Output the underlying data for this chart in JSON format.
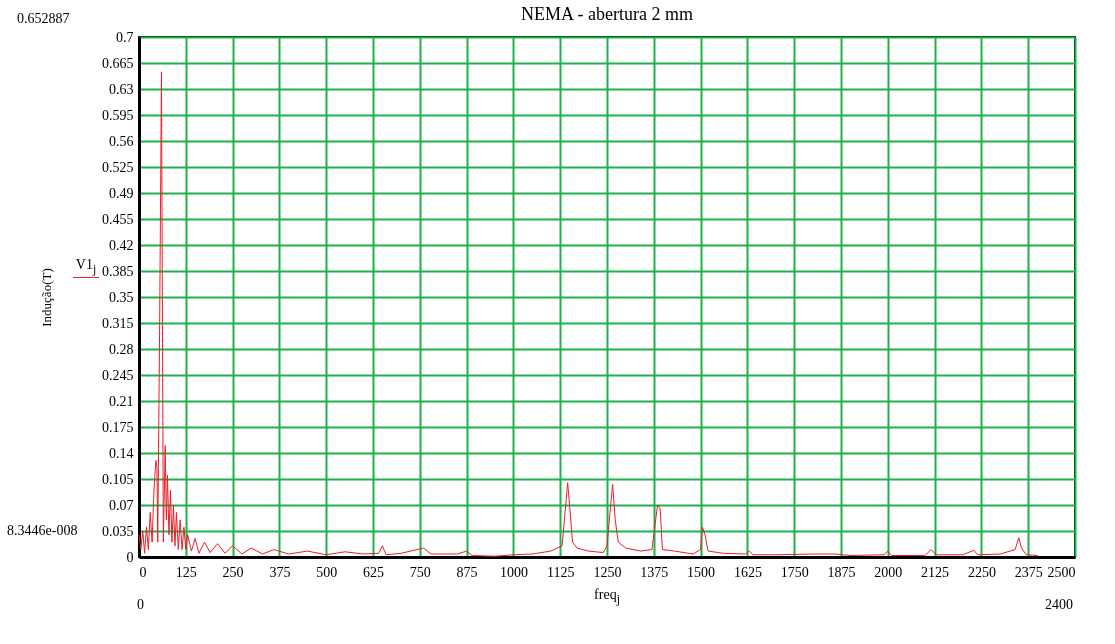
{
  "chart_data": {
    "type": "line",
    "title": "NEMA - abertura 2 mm",
    "xlabel": "freq$_{j}$",
    "ylabel": "Indução(T)",
    "x": [
      0,
      5,
      10,
      15,
      20,
      25,
      30,
      35,
      40,
      45,
      48,
      50,
      55,
      60,
      62,
      65,
      70,
      73,
      76,
      80,
      84,
      88,
      92,
      96,
      100,
      105,
      110,
      115,
      120,
      125,
      130,
      140,
      150,
      160,
      175,
      190,
      210,
      230,
      250,
      275,
      300,
      330,
      360,
      400,
      450,
      500,
      550,
      600,
      640,
      650,
      660,
      700,
      760,
      780,
      850,
      875,
      890,
      950,
      1000,
      1050,
      1100,
      1130,
      1138,
      1145,
      1150,
      1158,
      1170,
      1200,
      1240,
      1250,
      1258,
      1265,
      1272,
      1280,
      1300,
      1340,
      1370,
      1385,
      1392,
      1398,
      1430,
      1480,
      1500,
      1505,
      1512,
      1520,
      1560,
      1620,
      1630,
      1640,
      1700,
      1800,
      1860,
      1900,
      1990,
      2000,
      2010,
      2100,
      2115,
      2130,
      2200,
      2230,
      2240,
      2300,
      2340,
      2350,
      2357,
      2370,
      2400
    ],
    "series": [
      {
        "name": "V1$_{j}$",
        "color": "#e8202a",
        "values": [
          0.03,
          0.01,
          0.035,
          0.005,
          0.04,
          0.01,
          0.06,
          0.02,
          0.09,
          0.13,
          0.12,
          0.02,
          0.3,
          0.653,
          0.4,
          0.02,
          0.15,
          0.05,
          0.11,
          0.03,
          0.09,
          0.02,
          0.07,
          0.015,
          0.06,
          0.01,
          0.05,
          0.01,
          0.04,
          0.01,
          0.03,
          0.008,
          0.025,
          0.005,
          0.02,
          0.006,
          0.018,
          0.005,
          0.015,
          0.004,
          0.012,
          0.004,
          0.01,
          0.004,
          0.008,
          0.003,
          0.007,
          0.004,
          0.005,
          0.015,
          0.003,
          0.005,
          0.012,
          0.004,
          0.004,
          0.008,
          0.002,
          0.001,
          0.003,
          0.004,
          0.008,
          0.015,
          0.06,
          0.1,
          0.07,
          0.02,
          0.012,
          0.008,
          0.006,
          0.015,
          0.06,
          0.098,
          0.05,
          0.02,
          0.012,
          0.008,
          0.01,
          0.07,
          0.065,
          0.01,
          0.008,
          0.004,
          0.01,
          0.04,
          0.03,
          0.008,
          0.005,
          0.004,
          0.008,
          0.003,
          0.003,
          0.004,
          0.004,
          0.002,
          0.003,
          0.008,
          0.002,
          0.002,
          0.01,
          0.003,
          0.003,
          0.009,
          0.003,
          0.004,
          0.01,
          0.026,
          0.012,
          0.003,
          0.002
        ]
      }
    ],
    "xlim": [
      0,
      2500
    ],
    "xticks": [
      0,
      125,
      250,
      375,
      500,
      625,
      750,
      875,
      1000,
      1125,
      1250,
      1375,
      1500,
      1625,
      1750,
      1875,
      2000,
      2125,
      2250,
      2375,
      2500
    ],
    "ylim": [
      0,
      0.7
    ],
    "yticks": [
      0,
      0.035,
      0.07,
      0.105,
      0.14,
      0.175,
      0.21,
      0.245,
      0.28,
      0.315,
      0.35,
      0.385,
      0.42,
      0.455,
      0.49,
      0.525,
      0.56,
      0.595,
      0.63,
      0.665,
      0.7
    ],
    "grid": true,
    "legend": "left",
    "annotations": [
      "0.652887",
      "8.3446e-008",
      "0",
      "2400"
    ]
  }
}
